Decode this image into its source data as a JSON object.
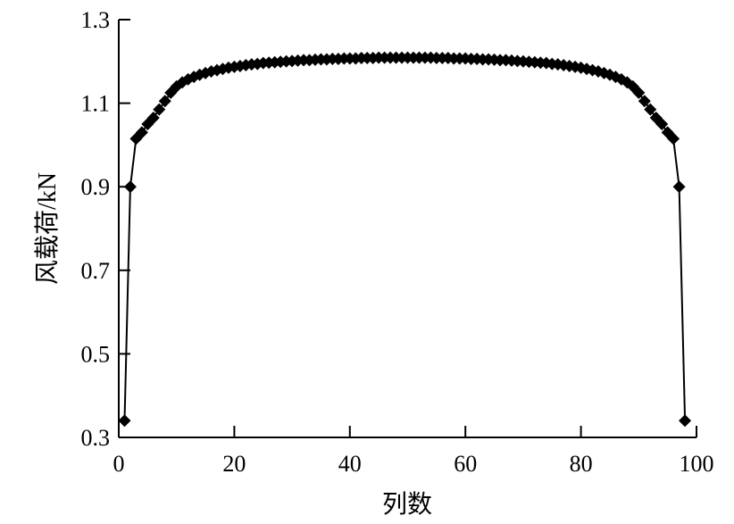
{
  "chart_data": {
    "type": "line",
    "title": "",
    "xlabel": "列数",
    "ylabel": "风载荷/kN",
    "xlim": [
      0,
      100
    ],
    "ylim": [
      0.3,
      1.3
    ],
    "xticks": [
      0,
      20,
      40,
      60,
      80,
      100
    ],
    "xtick_labels": [
      "0",
      "20",
      "40",
      "60",
      "80",
      "100"
    ],
    "yticks": [
      0.3,
      0.5,
      0.7,
      0.9,
      1.1,
      1.3
    ],
    "ytick_labels": [
      "0.3",
      "0.5",
      "0.7",
      "0.9",
      "1.1",
      "1.3"
    ],
    "grid": false,
    "marker": "diamond",
    "line_color": "#000000",
    "marker_color": "#000000",
    "series": [
      {
        "x": [
          1,
          2,
          3,
          4,
          5,
          6,
          7,
          8,
          9,
          10,
          11,
          12,
          13,
          14,
          15,
          16,
          17,
          18,
          19,
          20,
          21,
          22,
          23,
          24,
          25,
          26,
          27,
          28,
          29,
          30,
          31,
          32,
          33,
          34,
          35,
          36,
          37,
          38,
          39,
          40,
          41,
          42,
          43,
          44,
          45,
          46,
          47,
          48,
          49,
          50,
          51,
          52,
          53,
          54,
          55,
          56,
          57,
          58,
          59,
          60,
          61,
          62,
          63,
          64,
          65,
          66,
          67,
          68,
          69,
          70,
          71,
          72,
          73,
          74,
          75,
          76,
          77,
          78,
          79,
          80,
          81,
          82,
          83,
          84,
          85,
          86,
          87,
          88,
          89,
          90,
          91,
          92,
          93,
          94,
          95,
          96,
          97,
          98
        ],
        "y": [
          0.34,
          0.9,
          1.015,
          1.03,
          1.05,
          1.065,
          1.085,
          1.105,
          1.125,
          1.14,
          1.15,
          1.157,
          1.163,
          1.168,
          1.172,
          1.176,
          1.179,
          1.182,
          1.185,
          1.187,
          1.189,
          1.191,
          1.193,
          1.194,
          1.196,
          1.197,
          1.198,
          1.199,
          1.2,
          1.201,
          1.202,
          1.203,
          1.203,
          1.204,
          1.205,
          1.205,
          1.206,
          1.206,
          1.207,
          1.207,
          1.207,
          1.208,
          1.208,
          1.208,
          1.209,
          1.209,
          1.209,
          1.209,
          1.209,
          1.209,
          1.209,
          1.209,
          1.209,
          1.209,
          1.208,
          1.208,
          1.208,
          1.207,
          1.207,
          1.207,
          1.206,
          1.206,
          1.205,
          1.205,
          1.204,
          1.203,
          1.203,
          1.202,
          1.201,
          1.2,
          1.199,
          1.198,
          1.197,
          1.196,
          1.194,
          1.193,
          1.191,
          1.189,
          1.187,
          1.185,
          1.182,
          1.179,
          1.176,
          1.172,
          1.168,
          1.163,
          1.157,
          1.15,
          1.14,
          1.125,
          1.105,
          1.085,
          1.065,
          1.05,
          1.03,
          1.015,
          0.9,
          0.34
        ]
      }
    ]
  }
}
